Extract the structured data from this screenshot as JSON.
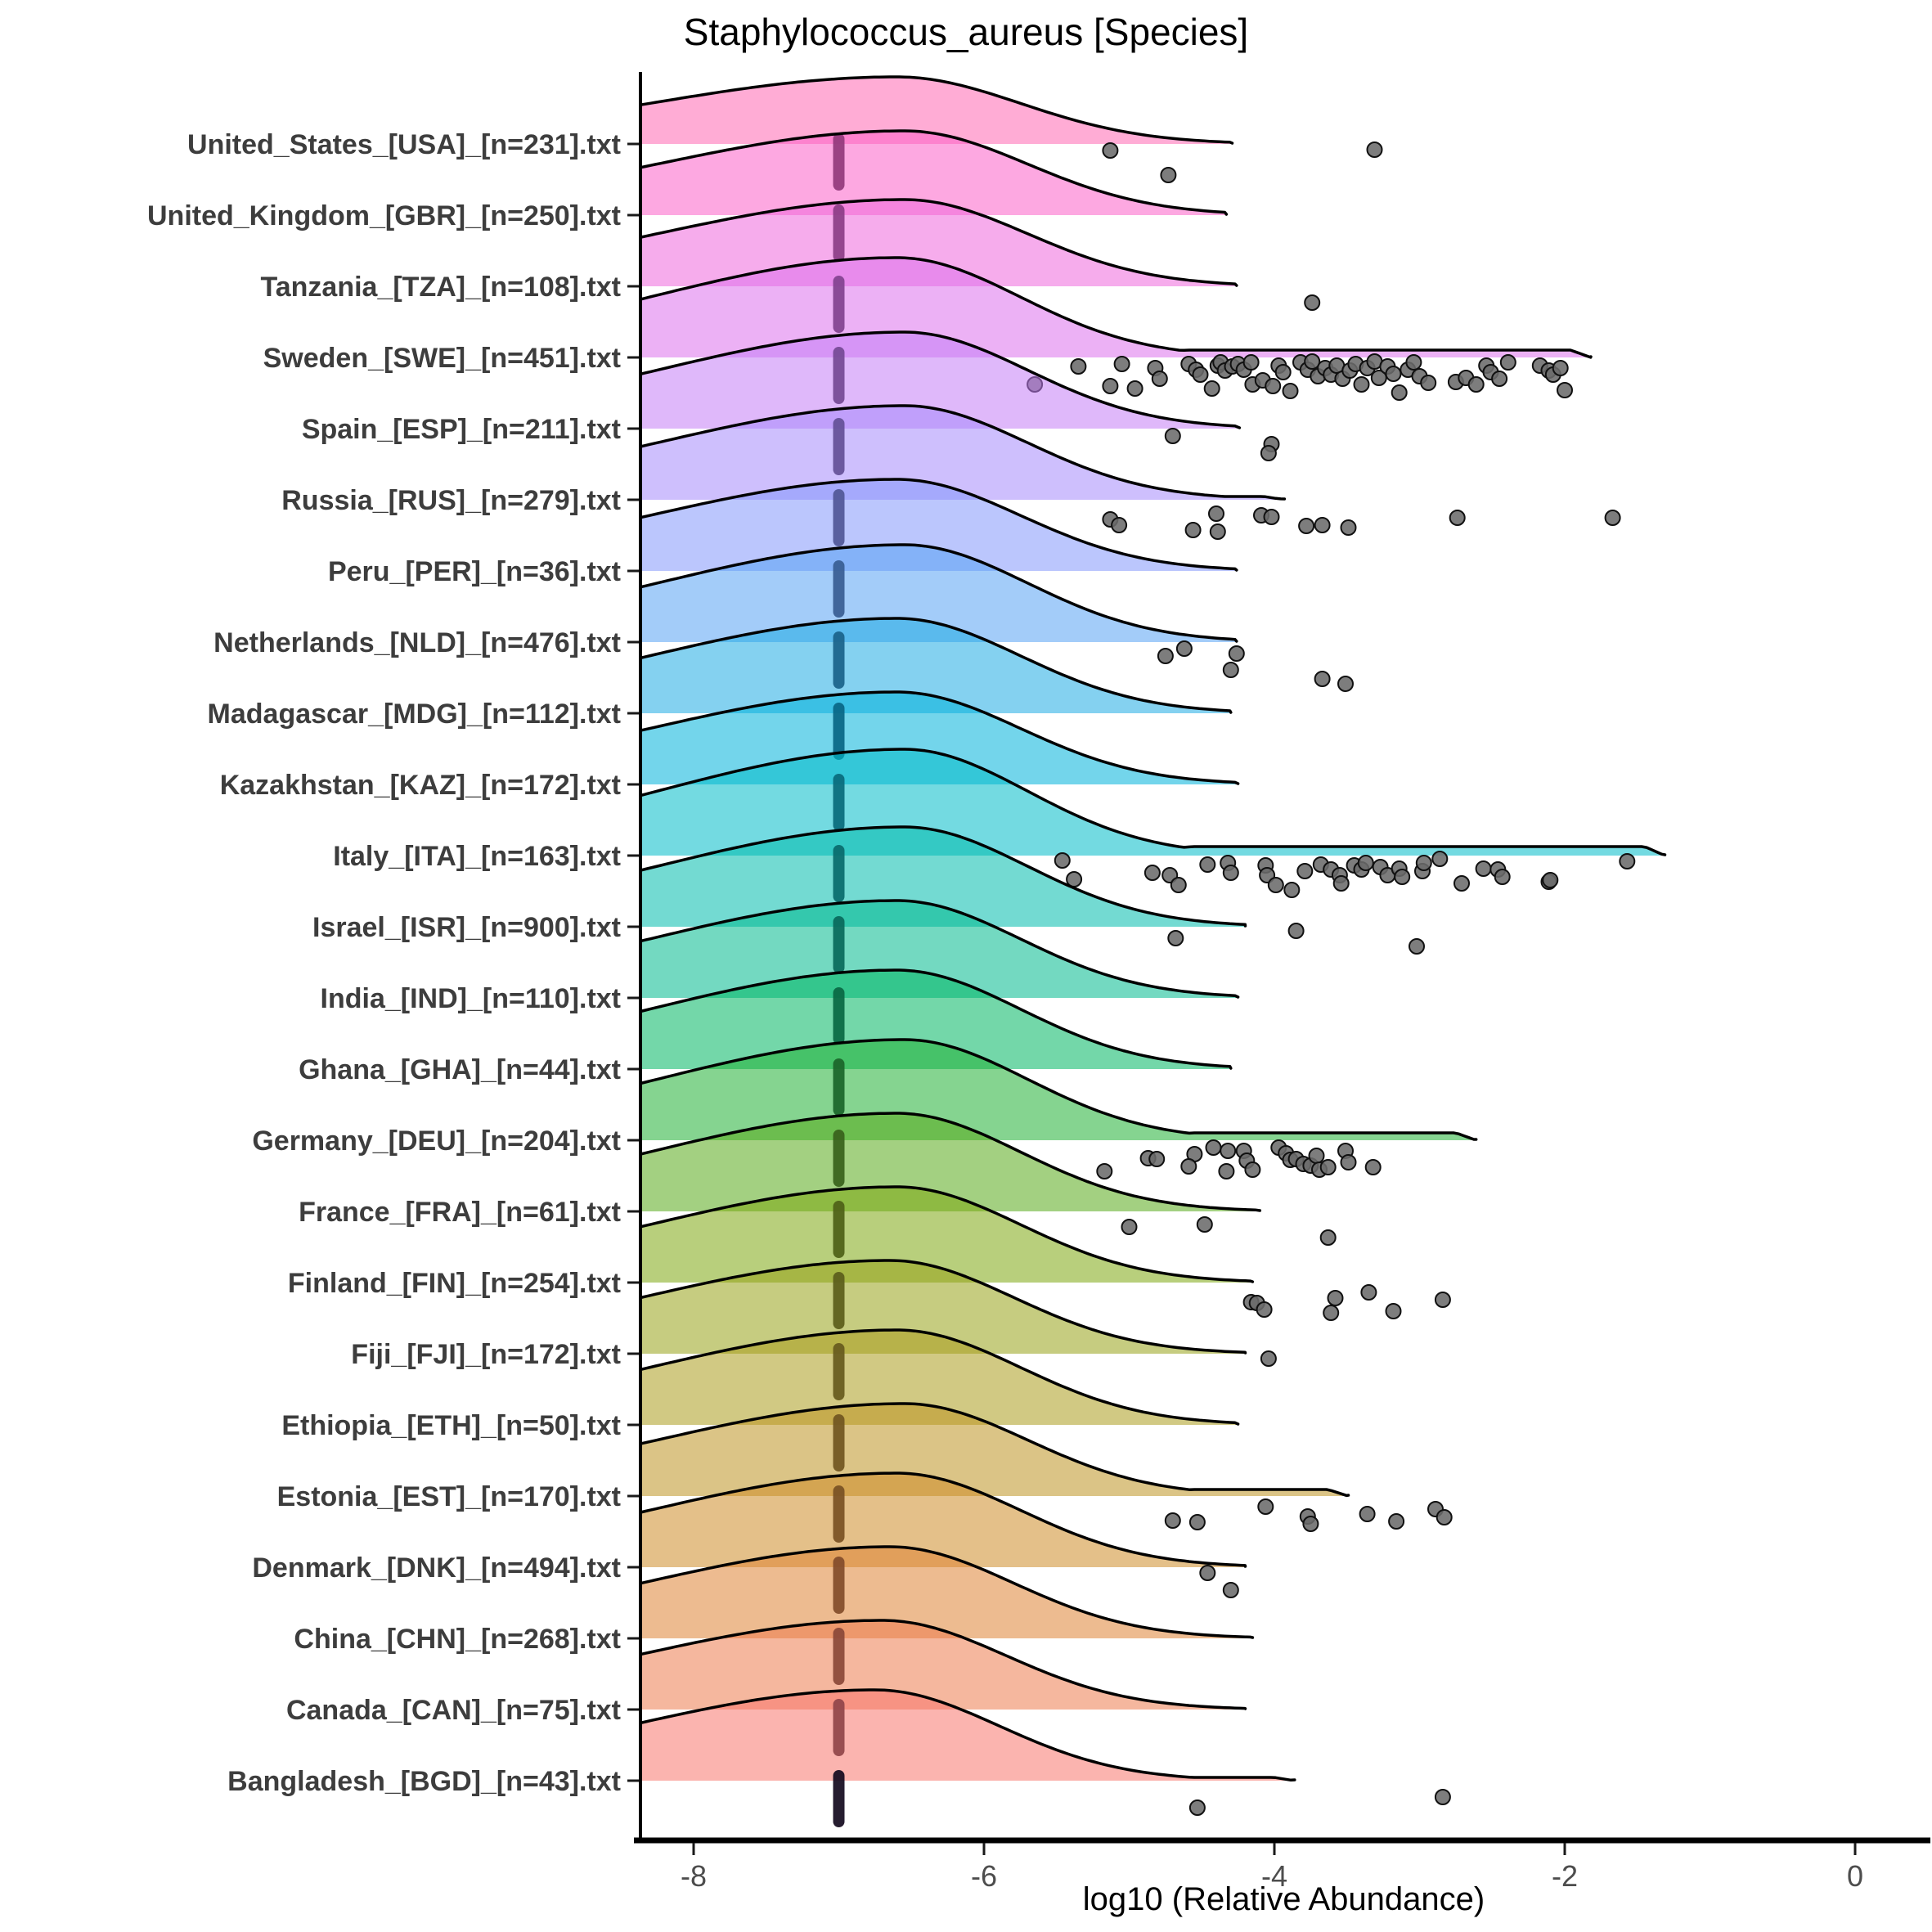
{
  "chart_data": {
    "type": "ridgeline",
    "title": "Staphylococcus_aureus [Species]",
    "xlabel": "log10 (Relative Abundance)",
    "x_ticks": [
      -8,
      -6,
      -4,
      -2,
      0
    ],
    "x_range": [
      -8.37,
      0.5
    ],
    "grid": false,
    "legend": "none",
    "median_bar_x": -7,
    "point_color": "#6b6b6b",
    "outline_color": "#000000",
    "sigma_left": 1.7,
    "sigma_right": 0.85,
    "rows": [
      {
        "label": "United_States_[USA]_[n=231].txt",
        "code": "usa",
        "color": "#FF67B3",
        "peak": 82,
        "mu": -6.6,
        "end": -4.29,
        "tail": 0,
        "points": [
          [
            -5.13,
            8
          ],
          [
            -4.73,
            38
          ],
          [
            -3.31,
            7
          ]
        ]
      },
      {
        "label": "United_Kingdom_[GBR]_[n=250].txt",
        "code": "gbr",
        "color": "#FB61C8",
        "peak": 103,
        "mu": -6.55,
        "end": -4.33,
        "tail": 0,
        "points": []
      },
      {
        "label": "Tanzania_[TZA]_[n=108].txt",
        "code": "tza",
        "color": "#EF67DD",
        "peak": 106,
        "mu": -6.55,
        "end": -4.26,
        "tail": 0,
        "points": [
          [
            -3.74,
            20
          ]
        ]
      },
      {
        "label": "Sweden_[SWE]_[n=451].txt",
        "code": "swe",
        "color": "#DC71EC",
        "peak": 122,
        "mu": -6.6,
        "end": -1.82,
        "tail": 9,
        "points": [
          [
            -5.65,
            33
          ],
          [
            -5.35,
            11
          ],
          [
            -5.13,
            35
          ],
          [
            -5.05,
            8
          ],
          [
            -4.96,
            38
          ],
          [
            -4.82,
            13
          ],
          [
            -4.79,
            26
          ],
          [
            -4.59,
            8
          ],
          [
            -4.54,
            15
          ],
          [
            -4.51,
            21
          ],
          [
            -4.43,
            38
          ],
          [
            -4.39,
            10
          ],
          [
            -4.37,
            6
          ],
          [
            -4.34,
            16
          ],
          [
            -4.29,
            11
          ],
          [
            -4.25,
            8
          ],
          [
            -4.21,
            15
          ],
          [
            -4.16,
            6
          ],
          [
            -4.15,
            33
          ],
          [
            -4.08,
            28
          ],
          [
            -4.01,
            35
          ],
          [
            -3.97,
            10
          ],
          [
            -3.94,
            18
          ],
          [
            -3.89,
            41
          ],
          [
            -3.82,
            6
          ],
          [
            -3.77,
            15
          ],
          [
            -3.74,
            5
          ],
          [
            -3.7,
            23
          ],
          [
            -3.65,
            13
          ],
          [
            -3.61,
            21
          ],
          [
            -3.57,
            10
          ],
          [
            -3.53,
            26
          ],
          [
            -3.48,
            16
          ],
          [
            -3.44,
            8
          ],
          [
            -3.4,
            33
          ],
          [
            -3.36,
            13
          ],
          [
            -3.31,
            5
          ],
          [
            -3.28,
            25
          ],
          [
            -3.22,
            11
          ],
          [
            -3.18,
            20
          ],
          [
            -3.14,
            43
          ],
          [
            -3.08,
            15
          ],
          [
            -3.04,
            6
          ],
          [
            -3.0,
            23
          ],
          [
            -2.94,
            31
          ],
          [
            -2.75,
            30
          ],
          [
            -2.68,
            25
          ],
          [
            -2.61,
            33
          ],
          [
            -2.54,
            10
          ],
          [
            -2.51,
            18
          ],
          [
            -2.45,
            26
          ],
          [
            -2.39,
            6
          ],
          [
            -2.17,
            10
          ],
          [
            -2.11,
            16
          ],
          [
            -2.08,
            21
          ],
          [
            -2.03,
            13
          ],
          [
            -2.0,
            40
          ]
        ]
      },
      {
        "label": "Spain_[ESP]_[n=211].txt",
        "code": "esp",
        "color": "#C47EF6",
        "peak": 118,
        "mu": -6.55,
        "end": -4.24,
        "tail": 0,
        "points": [
          [
            -4.7,
            9
          ],
          [
            -4.02,
            19
          ],
          [
            -4.04,
            30
          ]
        ]
      },
      {
        "label": "Russia_[RUS]_[n=279].txt",
        "code": "rus",
        "color": "#A68BFB",
        "peak": 115,
        "mu": -6.55,
        "end": -3.93,
        "tail": 4,
        "points": [
          [
            -5.13,
            24
          ],
          [
            -5.07,
            31
          ],
          [
            -4.4,
            17
          ],
          [
            -4.56,
            37
          ],
          [
            -4.39,
            39
          ],
          [
            -4.09,
            19
          ],
          [
            -4.02,
            21
          ],
          [
            -3.78,
            32
          ],
          [
            -3.67,
            31
          ],
          [
            -3.49,
            34
          ],
          [
            -2.74,
            22
          ],
          [
            -1.67,
            22
          ]
        ]
      },
      {
        "label": "Peru_[PER]_[n=36].txt",
        "code": "per",
        "color": "#8498FB",
        "peak": 112,
        "mu": -6.6,
        "end": -4.26,
        "tail": 0,
        "points": []
      },
      {
        "label": "Netherlands_[NLD]_[n=476].txt",
        "code": "nld",
        "color": "#57A3F4",
        "peak": 119,
        "mu": -6.55,
        "end": -4.26,
        "tail": 0,
        "points": [
          [
            -4.62,
            8
          ],
          [
            -4.75,
            17
          ],
          [
            -4.26,
            14
          ],
          [
            -4.3,
            34
          ],
          [
            -3.67,
            45
          ],
          [
            -3.51,
            51
          ]
        ]
      },
      {
        "label": "Madagascar_[MDG]_[n=112].txt",
        "code": "mdg",
        "color": "#1FACE4",
        "peak": 116,
        "mu": -6.6,
        "end": -4.3,
        "tail": 0,
        "points": []
      },
      {
        "label": "Kazakhstan_[KAZ]_[n=172].txt",
        "code": "kaz",
        "color": "#00B3DB",
        "peak": 113,
        "mu": -6.6,
        "end": -4.25,
        "tail": 0,
        "points": []
      },
      {
        "label": "Italy_[ITA]_[n=163].txt",
        "code": "ita",
        "color": "#00BCC8",
        "peak": 130,
        "mu": -6.55,
        "end": -1.31,
        "tail": 11,
        "points": [
          [
            -5.46,
            6
          ],
          [
            -5.38,
            29
          ],
          [
            -4.84,
            21
          ],
          [
            -4.72,
            24
          ],
          [
            -4.66,
            36
          ],
          [
            -4.46,
            11
          ],
          [
            -4.32,
            9
          ],
          [
            -4.3,
            21
          ],
          [
            -4.06,
            12
          ],
          [
            -4.05,
            24
          ],
          [
            -3.99,
            36
          ],
          [
            -3.88,
            42
          ],
          [
            -3.79,
            19
          ],
          [
            -3.68,
            11
          ],
          [
            -3.61,
            17
          ],
          [
            -3.55,
            24
          ],
          [
            -3.54,
            34
          ],
          [
            -3.45,
            12
          ],
          [
            -3.4,
            17
          ],
          [
            -3.37,
            9
          ],
          [
            -3.27,
            14
          ],
          [
            -3.22,
            24
          ],
          [
            -3.14,
            16
          ],
          [
            -3.12,
            26
          ],
          [
            -2.98,
            19
          ],
          [
            -2.97,
            9
          ],
          [
            -2.86,
            4
          ],
          [
            -2.71,
            34
          ],
          [
            -2.56,
            16
          ],
          [
            -2.46,
            17
          ],
          [
            -2.43,
            26
          ],
          [
            -2.11,
            32
          ],
          [
            -2.1,
            30
          ],
          [
            -1.57,
            7
          ]
        ]
      },
      {
        "label": "Israel_[ISR]_[n=900].txt",
        "code": "isr",
        "color": "#00BCAD",
        "peak": 122,
        "mu": -6.55,
        "end": -4.2,
        "tail": 0,
        "points": [
          [
            -4.68,
            14
          ],
          [
            -3.85,
            5
          ],
          [
            -3.02,
            24
          ]
        ]
      },
      {
        "label": "India_[IND]_[n=110].txt",
        "code": "ind",
        "color": "#00B98E",
        "peak": 119,
        "mu": -6.6,
        "end": -4.25,
        "tail": 0,
        "points": []
      },
      {
        "label": "Ghana_[GHA]_[n=44].txt",
        "code": "gha",
        "color": "#00B663",
        "peak": 121,
        "mu": -6.6,
        "end": -4.3,
        "tail": 0,
        "points": []
      },
      {
        "label": "Germany_[DEU]_[n=204].txt",
        "code": "deu",
        "color": "#21B134",
        "peak": 123,
        "mu": -6.55,
        "end": -2.61,
        "tail": 9,
        "points": [
          [
            -5.17,
            38
          ],
          [
            -4.87,
            22
          ],
          [
            -4.81,
            23
          ],
          [
            -4.55,
            17
          ],
          [
            -4.59,
            32
          ],
          [
            -4.42,
            9
          ],
          [
            -4.32,
            13
          ],
          [
            -4.33,
            38
          ],
          [
            -4.21,
            13
          ],
          [
            -4.19,
            25
          ],
          [
            -4.15,
            36
          ],
          [
            -3.97,
            9
          ],
          [
            -3.92,
            16
          ],
          [
            -3.89,
            24
          ],
          [
            -3.85,
            23
          ],
          [
            -3.8,
            29
          ],
          [
            -3.75,
            31
          ],
          [
            -3.71,
            19
          ],
          [
            -3.69,
            36
          ],
          [
            -3.63,
            33
          ],
          [
            -3.51,
            13
          ],
          [
            -3.49,
            27
          ],
          [
            -3.32,
            33
          ]
        ]
      },
      {
        "label": "France_[FRA]_[n=61].txt",
        "code": "fra",
        "color": "#57AA19",
        "peak": 120,
        "mu": -6.6,
        "end": -4.1,
        "tail": 0,
        "points": [
          [
            -5.0,
            19
          ],
          [
            -4.48,
            16
          ],
          [
            -3.63,
            32
          ]
        ]
      },
      {
        "label": "Finland_[FIN]_[n=254].txt",
        "code": "fin",
        "color": "#7EA711",
        "peak": 117,
        "mu": -6.6,
        "end": -4.15,
        "tail": 0,
        "points": [
          [
            -4.16,
            24
          ],
          [
            -4.12,
            25
          ],
          [
            -4.07,
            33
          ],
          [
            -3.58,
            19
          ],
          [
            -3.61,
            37
          ],
          [
            -3.35,
            12
          ],
          [
            -3.18,
            35
          ],
          [
            -2.84,
            21
          ]
        ]
      },
      {
        "label": "Fiji_[FJI]_[n=172].txt",
        "code": "fji",
        "color": "#97A318",
        "peak": 114,
        "mu": -6.65,
        "end": -4.2,
        "tail": 0,
        "points": [
          [
            -4.04,
            6
          ]
        ]
      },
      {
        "label": "Ethiopia_[ETH]_[n=50].txt",
        "code": "eth",
        "color": "#AC9C1E",
        "peak": 116,
        "mu": -6.6,
        "end": -4.25,
        "tail": 0,
        "points": []
      },
      {
        "label": "Estonia_[EST]_[n=170].txt",
        "code": "est",
        "color": "#BD9422",
        "peak": 113,
        "mu": -6.55,
        "end": -3.49,
        "tail": 8,
        "points": [
          [
            -4.7,
            30
          ],
          [
            -4.53,
            32
          ],
          [
            -4.06,
            13
          ],
          [
            -3.77,
            25
          ],
          [
            -3.75,
            34
          ],
          [
            -3.36,
            22
          ],
          [
            -3.16,
            31
          ],
          [
            -2.89,
            16
          ],
          [
            -2.83,
            26
          ]
        ]
      },
      {
        "label": "Denmark_[DNK]_[n=494].txt",
        "code": "dnk",
        "color": "#CD8C28",
        "peak": 115,
        "mu": -6.6,
        "end": -4.2,
        "tail": 0,
        "points": [
          [
            -4.46,
            7
          ],
          [
            -4.3,
            28
          ]
        ]
      },
      {
        "label": "China_[CHN]_[n=268].txt",
        "code": "chn",
        "color": "#DE8434",
        "peak": 112,
        "mu": -6.65,
        "end": -4.15,
        "tail": 0,
        "points": []
      },
      {
        "label": "Canada_[CAN]_[n=75].txt",
        "code": "can",
        "color": "#EC7C4E",
        "peak": 109,
        "mu": -6.7,
        "end": -4.2,
        "tail": 0,
        "points": []
      },
      {
        "label": "Bangladesh_[BGD]_[n=43].txt",
        "code": "bgd",
        "color": "#F8766D",
        "peak": 111,
        "mu": -6.75,
        "end": -3.86,
        "tail": 4,
        "points": [
          [
            -4.53,
            33
          ],
          [
            -2.84,
            20
          ]
        ]
      }
    ]
  }
}
